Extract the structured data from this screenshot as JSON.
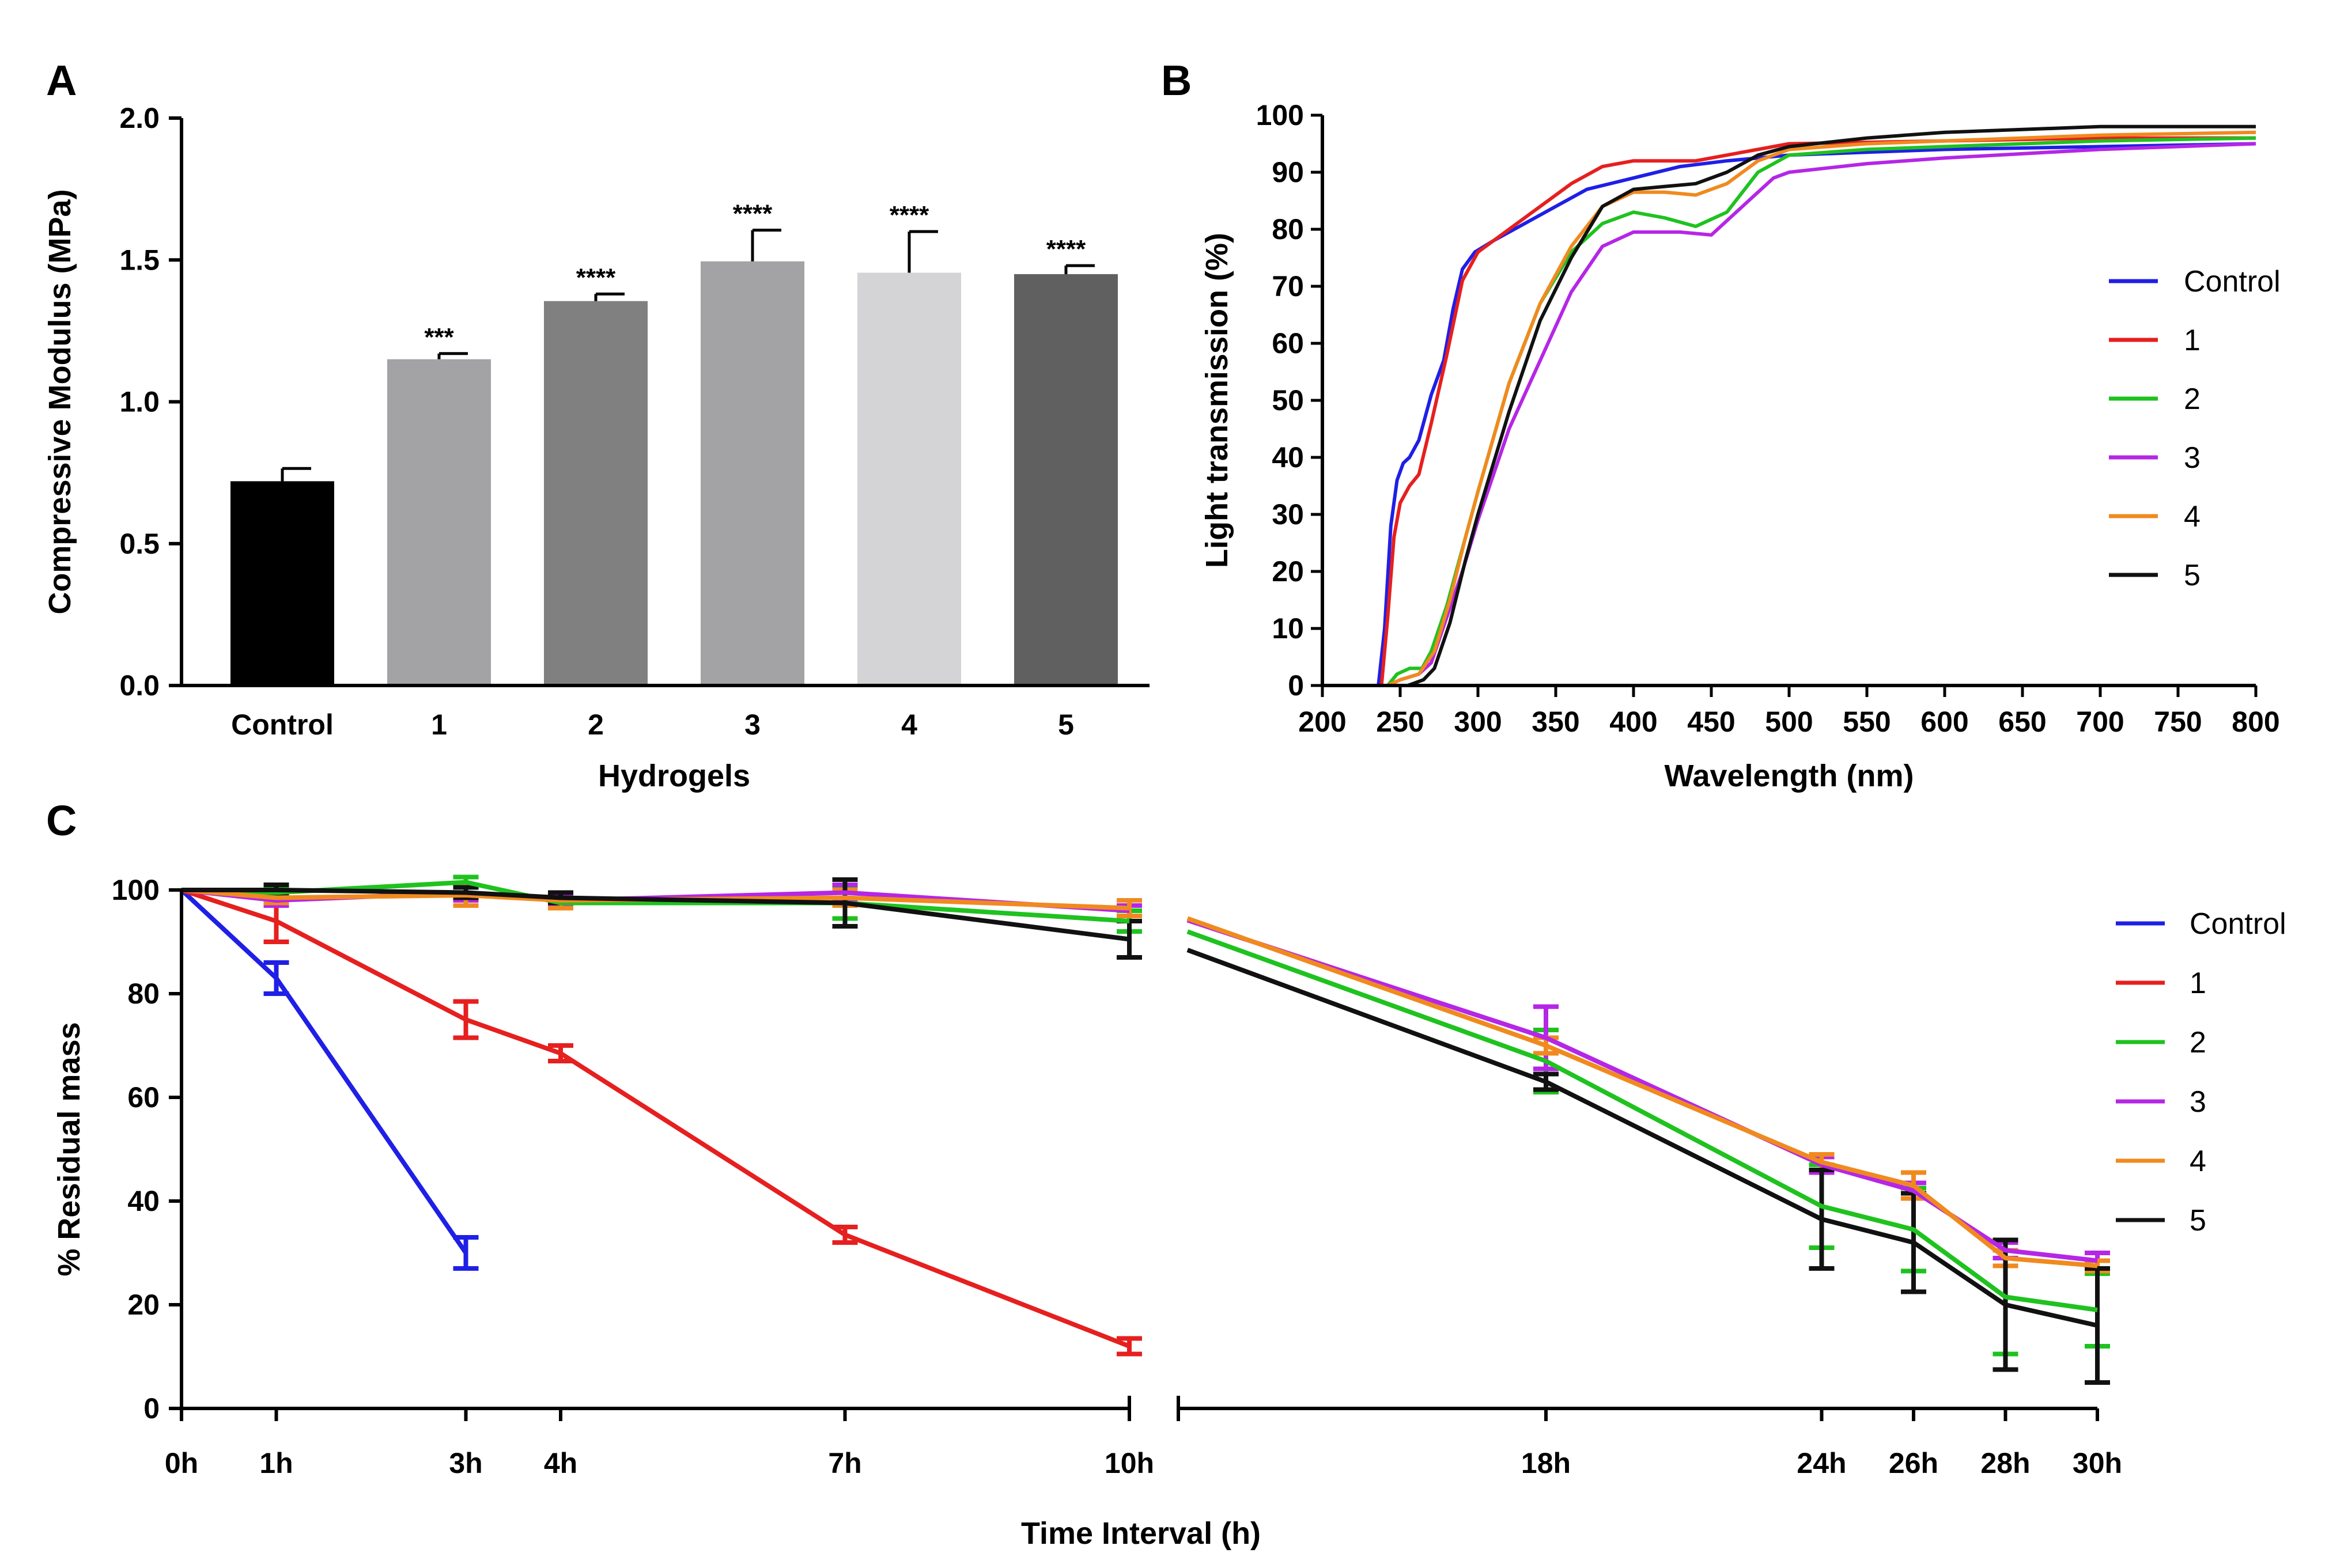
{
  "chart_data": [
    {
      "panel": "A",
      "type": "bar",
      "xlabel": "Hydrogels",
      "ylabel": "Compressive Modulus (MPa)",
      "ylim": [
        0,
        2.0
      ],
      "yticks": [
        "0.0",
        "0.5",
        "1.0",
        "1.5",
        "2.0"
      ],
      "categories": [
        "Control",
        "1",
        "2",
        "3",
        "4",
        "5"
      ],
      "values": [
        0.72,
        1.15,
        1.355,
        1.495,
        1.455,
        1.45
      ],
      "errors": [
        0.045,
        0.02,
        0.025,
        0.11,
        0.145,
        0.03
      ],
      "significance": [
        "",
        "***",
        "****",
        "****",
        "****",
        "****"
      ],
      "colors": [
        "#000000",
        "#a3a3a6",
        "#808080",
        "#a3a3a6",
        "#d4d4d6",
        "#606060"
      ]
    },
    {
      "panel": "B",
      "type": "line",
      "xlabel": "Wavelength (nm)",
      "ylabel": "Light transmission (%)",
      "xlim": [
        200,
        800
      ],
      "ylim": [
        0,
        100
      ],
      "xticks": [
        "200",
        "250",
        "300",
        "350",
        "400",
        "450",
        "500",
        "550",
        "600",
        "650",
        "700",
        "750",
        "800"
      ],
      "yticks": [
        "0",
        "10",
        "20",
        "30",
        "40",
        "50",
        "60",
        "70",
        "80",
        "90",
        "100"
      ],
      "legend": [
        "Control",
        "1",
        "2",
        "3",
        "4",
        "5"
      ],
      "series": [
        {
          "name": "Control",
          "color": "#1f1fe6",
          "points": [
            [
              200,
              0
            ],
            [
              236,
              0
            ],
            [
              240,
              10
            ],
            [
              244,
              28
            ],
            [
              248,
              36
            ],
            [
              252,
              39
            ],
            [
              256,
              40
            ],
            [
              262,
              43
            ],
            [
              270,
              51
            ],
            [
              278,
              57
            ],
            [
              284,
              66
            ],
            [
              290,
              73
            ],
            [
              298,
              76
            ],
            [
              310,
              78
            ],
            [
              330,
              81
            ],
            [
              350,
              84
            ],
            [
              370,
              87
            ],
            [
              400,
              89
            ],
            [
              430,
              91
            ],
            [
              460,
              92
            ],
            [
              500,
              93
            ],
            [
              550,
              93.5
            ],
            [
              600,
              94
            ],
            [
              700,
              94.5
            ],
            [
              800,
              95
            ]
          ]
        },
        {
          "name": "1",
          "color": "#e61f1f",
          "points": [
            [
              200,
              0
            ],
            [
              238,
              0
            ],
            [
              242,
              12
            ],
            [
              246,
              26
            ],
            [
              250,
              32
            ],
            [
              256,
              35
            ],
            [
              262,
              37
            ],
            [
              270,
              46
            ],
            [
              280,
              58
            ],
            [
              290,
              71
            ],
            [
              300,
              76
            ],
            [
              320,
              80
            ],
            [
              340,
              84
            ],
            [
              360,
              88
            ],
            [
              380,
              91
            ],
            [
              400,
              92
            ],
            [
              440,
              92
            ],
            [
              470,
              93.5
            ],
            [
              500,
              95
            ],
            [
              600,
              95.5
            ],
            [
              700,
              96
            ],
            [
              800,
              96
            ]
          ]
        },
        {
          "name": "2",
          "color": "#1fc21f",
          "points": [
            [
              200,
              0
            ],
            [
              242,
              0
            ],
            [
              248,
              2
            ],
            [
              256,
              3
            ],
            [
              264,
              3
            ],
            [
              270,
              6
            ],
            [
              280,
              14
            ],
            [
              290,
              24
            ],
            [
              300,
              34
            ],
            [
              320,
              53
            ],
            [
              340,
              67
            ],
            [
              360,
              76
            ],
            [
              380,
              81
            ],
            [
              400,
              83
            ],
            [
              420,
              82
            ],
            [
              440,
              80.5
            ],
            [
              460,
              83
            ],
            [
              480,
              90
            ],
            [
              500,
              93
            ],
            [
              550,
              94
            ],
            [
              600,
              94.5
            ],
            [
              700,
              95.5
            ],
            [
              800,
              96
            ]
          ]
        },
        {
          "name": "3",
          "color": "#b526e6",
          "points": [
            [
              200,
              0
            ],
            [
              242,
              0
            ],
            [
              250,
              1
            ],
            [
              262,
              2
            ],
            [
              270,
              4
            ],
            [
              280,
              12
            ],
            [
              290,
              20
            ],
            [
              300,
              29
            ],
            [
              320,
              45
            ],
            [
              340,
              57
            ],
            [
              360,
              69
            ],
            [
              380,
              77
            ],
            [
              400,
              79.5
            ],
            [
              430,
              79.5
            ],
            [
              450,
              79
            ],
            [
              470,
              84
            ],
            [
              490,
              89
            ],
            [
              500,
              90
            ],
            [
              550,
              91.5
            ],
            [
              600,
              92.5
            ],
            [
              700,
              94
            ],
            [
              800,
              95
            ]
          ]
        },
        {
          "name": "4",
          "color": "#f08a1f",
          "points": [
            [
              200,
              0
            ],
            [
              242,
              0
            ],
            [
              250,
              1
            ],
            [
              262,
              2
            ],
            [
              272,
              6
            ],
            [
              282,
              15
            ],
            [
              292,
              26
            ],
            [
              300,
              34
            ],
            [
              320,
              53
            ],
            [
              340,
              67
            ],
            [
              360,
              77
            ],
            [
              380,
              84
            ],
            [
              400,
              86.5
            ],
            [
              420,
              86.5
            ],
            [
              440,
              86
            ],
            [
              460,
              88
            ],
            [
              480,
              92
            ],
            [
              500,
              94
            ],
            [
              550,
              95
            ],
            [
              600,
              95.5
            ],
            [
              700,
              96.5
            ],
            [
              800,
              97
            ]
          ]
        },
        {
          "name": "5",
          "color": "#111111",
          "points": [
            [
              200,
              0
            ],
            [
              242,
              0
            ],
            [
              255,
              0
            ],
            [
              265,
              1
            ],
            [
              272,
              3
            ],
            [
              282,
              11
            ],
            [
              292,
              22
            ],
            [
              300,
              30
            ],
            [
              320,
              48
            ],
            [
              340,
              64
            ],
            [
              360,
              75
            ],
            [
              380,
              84
            ],
            [
              400,
              87
            ],
            [
              420,
              87.5
            ],
            [
              440,
              88
            ],
            [
              460,
              90
            ],
            [
              480,
              93
            ],
            [
              500,
              94.5
            ],
            [
              550,
              96
            ],
            [
              600,
              97
            ],
            [
              650,
              97.5
            ],
            [
              700,
              98
            ],
            [
              800,
              98
            ]
          ]
        }
      ]
    },
    {
      "panel": "C",
      "type": "line",
      "xlabel": "Time Interval (h)",
      "ylabel": "% Residual mass",
      "ylim": [
        0,
        100
      ],
      "yticks": [
        "0",
        "20",
        "40",
        "60",
        "80",
        "100"
      ],
      "xticks": [
        "0h",
        "1h",
        "3h",
        "4h",
        "7h",
        "10h",
        "18h",
        "24h",
        "26h",
        "28h",
        "30h"
      ],
      "x_break": {
        "segment1": [
          0,
          10
        ],
        "segment2": [
          10,
          30
        ]
      },
      "legend": [
        "Control",
        "1",
        "2",
        "3",
        "4",
        "5"
      ],
      "series": [
        {
          "name": "Control",
          "color": "#1f1fe6",
          "x": [
            0,
            1,
            3
          ],
          "y": [
            100,
            83,
            30
          ],
          "err": [
            0,
            3,
            3
          ]
        },
        {
          "name": "1",
          "color": "#e61f1f",
          "x": [
            0,
            1,
            3,
            4,
            7,
            10
          ],
          "y": [
            100,
            94,
            75,
            68.5,
            33.5,
            12
          ],
          "err": [
            0,
            4,
            3.5,
            1.5,
            1.5,
            1.5
          ]
        },
        {
          "name": "2",
          "color": "#1fc21f",
          "x": [
            0,
            1,
            3,
            4,
            7,
            10,
            18,
            24,
            26,
            28,
            30
          ],
          "y": [
            100,
            99.5,
            101.5,
            97.5,
            97.5,
            94,
            67,
            39,
            34.5,
            21.5,
            19
          ],
          "err": [
            0,
            1,
            1,
            1,
            3,
            2,
            6,
            8,
            8,
            11,
            7
          ]
        },
        {
          "name": "3",
          "color": "#b526e6",
          "x": [
            0,
            1,
            3,
            4,
            7,
            10,
            18,
            24,
            26,
            28,
            30
          ],
          "y": [
            100,
            98,
            99.5,
            98,
            99.5,
            96,
            71.5,
            47,
            42,
            30.5,
            28.5
          ],
          "err": [
            0,
            1,
            1.5,
            1,
            1.5,
            1,
            6,
            1.5,
            1.5,
            1.5,
            1.5
          ]
        },
        {
          "name": "4",
          "color": "#f08a1f",
          "x": [
            0,
            1,
            3,
            4,
            7,
            10,
            18,
            24,
            26,
            28,
            30
          ],
          "y": [
            100,
            98.5,
            99,
            98,
            98.5,
            96.5,
            70,
            47.5,
            43,
            29,
            27.5
          ],
          "err": [
            0,
            1,
            2,
            1.5,
            1.5,
            1.5,
            1.5,
            1.5,
            2.5,
            1.5,
            1
          ]
        },
        {
          "name": "5",
          "color": "#111111",
          "x": [
            0,
            1,
            3,
            4,
            7,
            10,
            18,
            24,
            26,
            28,
            30
          ],
          "y": [
            100,
            100,
            99.5,
            98.5,
            97.5,
            90.5,
            63,
            36.5,
            32,
            20,
            16
          ],
          "err": [
            0,
            1,
            1,
            1,
            4.5,
            3.5,
            1.5,
            9.5,
            9.5,
            12.5,
            11
          ]
        }
      ]
    }
  ]
}
